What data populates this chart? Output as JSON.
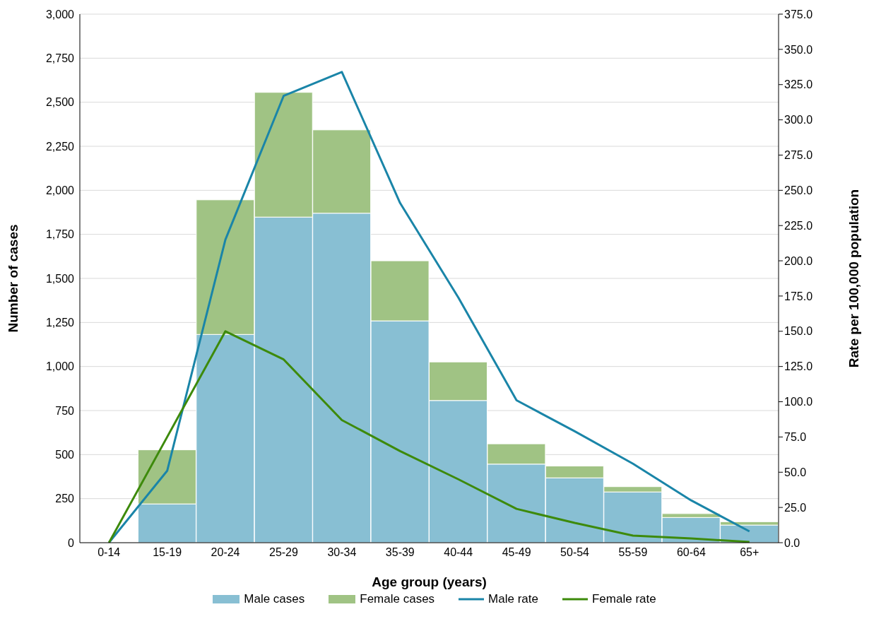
{
  "chart_data": {
    "type": "bar",
    "xlabel": "Age group (years)",
    "ylabel": "Number of cases",
    "y2label": "Rate per 100,000 population",
    "categories": [
      "0-14",
      "15-19",
      "20-24",
      "25-29",
      "30-34",
      "35-39",
      "40-44",
      "45-49",
      "50-54",
      "55-59",
      "60-64",
      "65+"
    ],
    "stacked": true,
    "series": [
      {
        "name": "Male cases",
        "color": "#88bfd3",
        "values": [
          2,
          220,
          1182,
          1848,
          1870,
          1259,
          807,
          446,
          368,
          288,
          143,
          100
        ]
      },
      {
        "name": "Female cases",
        "color": "#a0c384",
        "values": [
          4,
          307,
          764,
          708,
          473,
          341,
          219,
          115,
          67,
          30,
          22,
          19
        ]
      },
      {
        "name": "Male rate",
        "type": "line",
        "axis": "y2",
        "color": "#1a85a8",
        "values": [
          0,
          51,
          215,
          317,
          334,
          241,
          174,
          101,
          79,
          56,
          30,
          8
        ]
      },
      {
        "name": "Female rate",
        "type": "line",
        "axis": "y2",
        "color": "#3d8a0b",
        "values": [
          0,
          75,
          150,
          130,
          87,
          65,
          45,
          24,
          14,
          5,
          3,
          0.5
        ]
      }
    ],
    "ylim": [
      0,
      3000
    ],
    "yticks": [
      0,
      250,
      500,
      750,
      {
        "value": 1000,
        "label": "1,000"
      },
      {
        "value": 1250,
        "label": "1,250"
      },
      {
        "value": 1500,
        "label": "1,500"
      },
      {
        "value": 1750,
        "label": "1,750"
      },
      {
        "value": 2000,
        "label": "2,000"
      },
      {
        "value": 2250,
        "label": "2,250"
      },
      {
        "value": 2500,
        "label": "2,500"
      },
      {
        "value": 2750,
        "label": "2,750"
      },
      {
        "value": 3000,
        "label": "3,000"
      }
    ],
    "y2lim": [
      0,
      375
    ],
    "y2ticks": [
      {
        "value": 0,
        "label": "0.0"
      },
      {
        "value": 25,
        "label": "25.0"
      },
      {
        "value": 50,
        "label": "50.0"
      },
      {
        "value": 75,
        "label": "75.0"
      },
      {
        "value": 100,
        "label": "100.0"
      },
      {
        "value": 125,
        "label": "125.0"
      },
      {
        "value": 150,
        "label": "150.0"
      },
      {
        "value": 175,
        "label": "175.0"
      },
      {
        "value": 200,
        "label": "200.0"
      },
      {
        "value": 225,
        "label": "225.0"
      },
      {
        "value": 250,
        "label": "250.0"
      },
      {
        "value": 275,
        "label": "275.0"
      },
      {
        "value": 300,
        "label": "300.0"
      },
      {
        "value": 325,
        "label": "325.0"
      },
      {
        "value": 350,
        "label": "350.0"
      },
      {
        "value": 375,
        "label": "375.0"
      }
    ],
    "grid": "y",
    "legend": "bottom"
  }
}
